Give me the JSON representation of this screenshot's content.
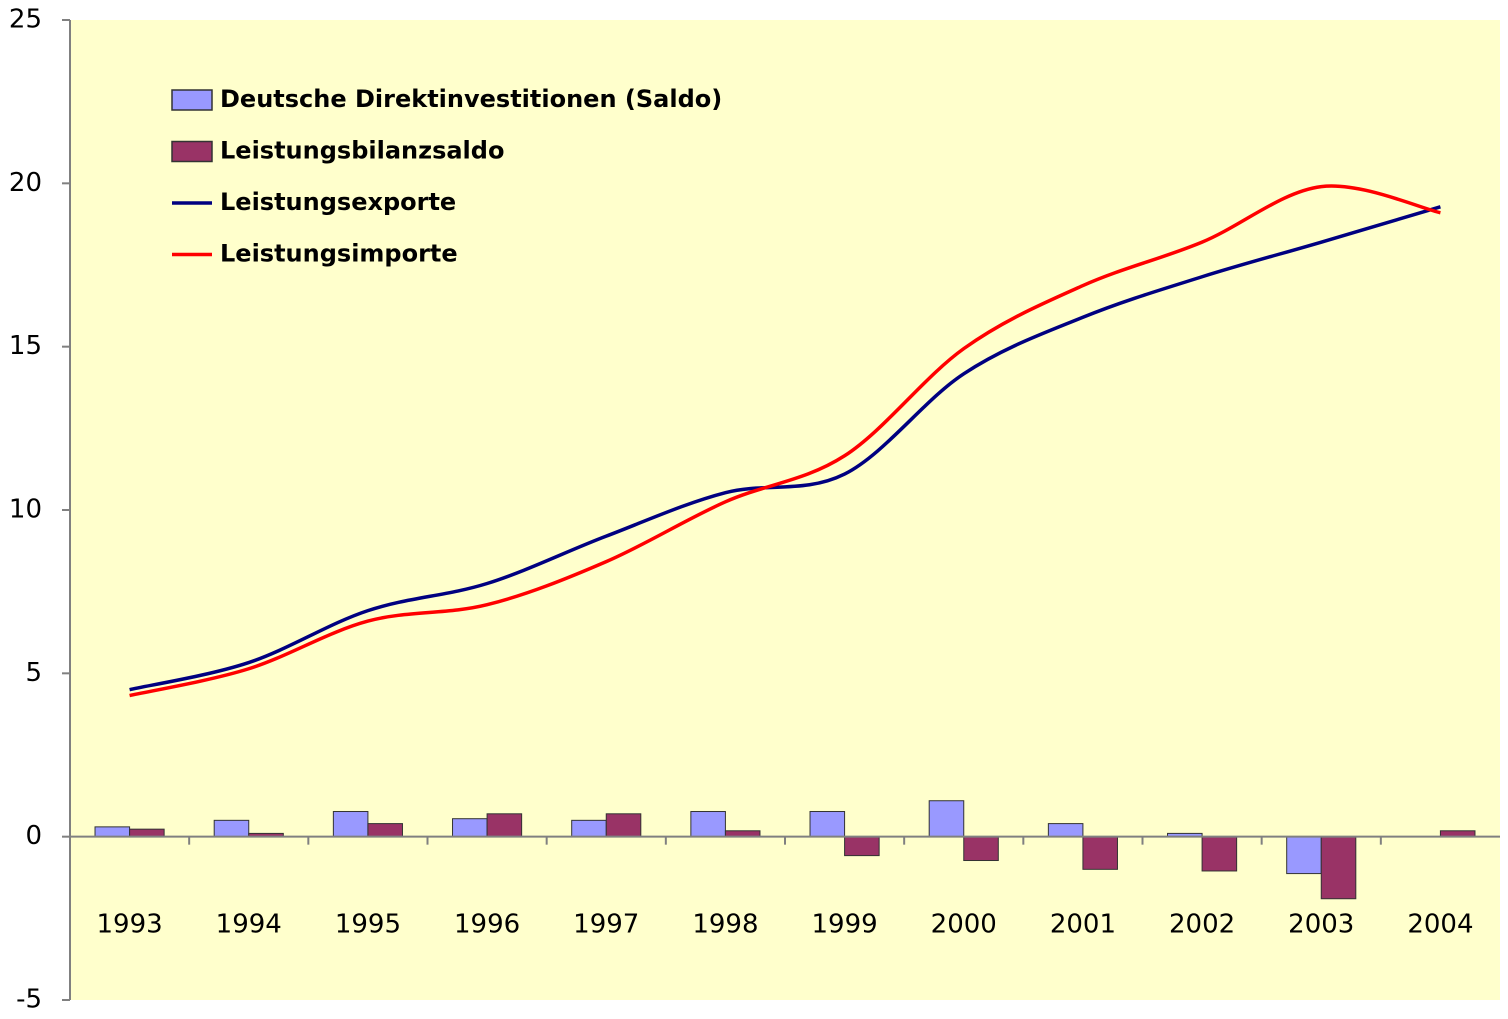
{
  "chart_data": {
    "type": "bar_line",
    "categories": [
      "1993",
      "1994",
      "1995",
      "1996",
      "1997",
      "1998",
      "1999",
      "2000",
      "2001",
      "2002",
      "2003",
      "2004"
    ],
    "series": [
      {
        "name": "Deutsche Direktinvestitionen (Saldo)",
        "type": "bar",
        "color": "#9999ff",
        "values": [
          0.3,
          0.5,
          0.77,
          0.55,
          0.5,
          0.77,
          0.77,
          1.1,
          0.4,
          0.1,
          -1.13,
          0
        ]
      },
      {
        "name": "Leistungsbilanzsaldo",
        "type": "bar",
        "color": "#993366",
        "values": [
          0.23,
          0.1,
          0.4,
          0.7,
          0.7,
          0.18,
          -0.58,
          -0.73,
          -1.0,
          -1.05,
          -1.9,
          0.18
        ]
      },
      {
        "name": "Leistungsexporte",
        "type": "line",
        "color": "#000080",
        "values": [
          4.5,
          5.33,
          6.92,
          7.75,
          9.2,
          10.53,
          11.1,
          14.17,
          15.9,
          17.14,
          18.2,
          19.28
        ]
      },
      {
        "name": "Leistungsimporte",
        "type": "line",
        "color": "#ff0000",
        "values": [
          4.32,
          5.14,
          6.6,
          7.1,
          8.42,
          10.25,
          11.66,
          14.94,
          16.87,
          18.2,
          19.9,
          19.1
        ]
      }
    ],
    "ylim": [
      -5,
      25
    ],
    "yticks": [
      -5,
      0,
      5,
      10,
      15,
      20,
      25
    ],
    "background": "#ffffcc",
    "legend": "top-left"
  }
}
